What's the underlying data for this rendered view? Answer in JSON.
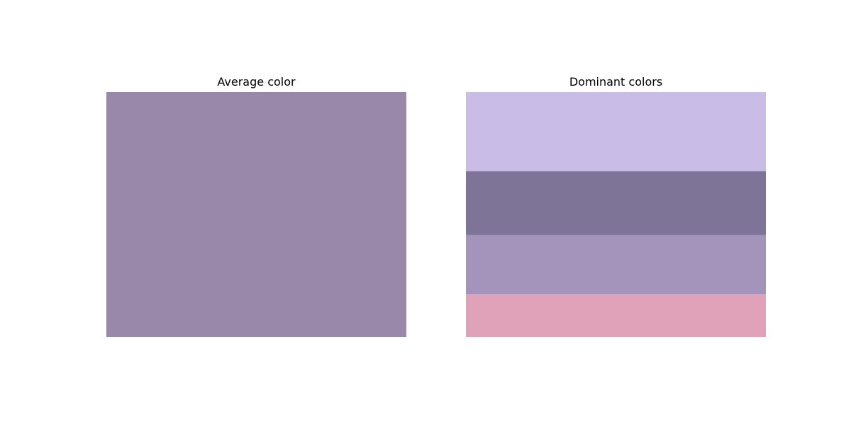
{
  "chart_data": [
    {
      "type": "bar",
      "title": "Average color",
      "xlabel": "",
      "ylabel": "",
      "grid": false,
      "average_color": "#9a88aa",
      "values": [
        1.0
      ]
    },
    {
      "type": "bar",
      "title": "Dominant colors",
      "xlabel": "",
      "ylabel": "",
      "grid": false,
      "orientation": "stacked-vertical",
      "categories": [
        "#c9bce6",
        "#7e7497",
        "#a493ba",
        "#e0a2b9"
      ],
      "values": [
        0.323,
        0.26,
        0.241,
        0.176
      ]
    }
  ]
}
